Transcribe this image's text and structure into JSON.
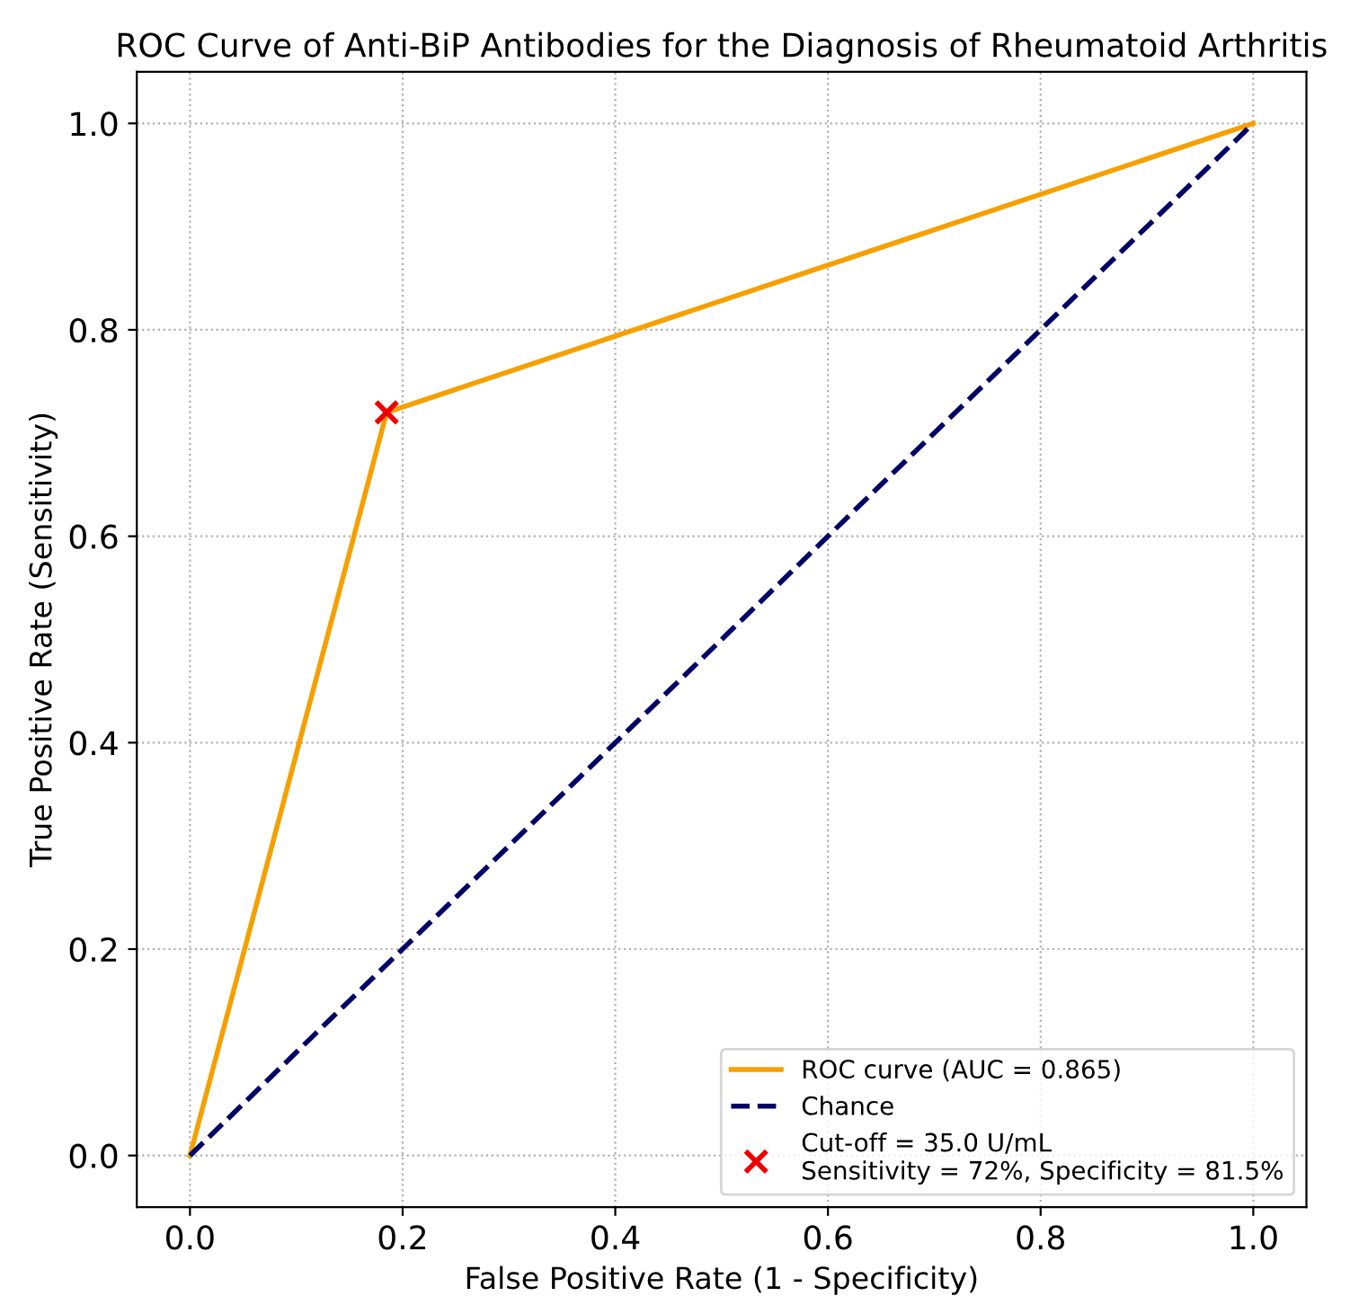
{
  "chart_data": {
    "type": "line",
    "title": "ROC Curve of Anti-BiP Antibodies for the Diagnosis of Rheumatoid Arthritis",
    "xlabel": "False Positive Rate (1 - Specificity)",
    "ylabel": "True Positive Rate (Sensitivity)",
    "series": [
      {
        "name": "ROC curve (AUC = 0.865)",
        "color": "#f5a000",
        "x": [
          0,
          0.185,
          1
        ],
        "values": [
          0,
          0.72,
          1
        ],
        "line_style": "solid",
        "marker": "none"
      },
      {
        "name": "Chance",
        "color": "#000066",
        "x": [
          0,
          1
        ],
        "values": [
          0,
          1
        ],
        "line_style": "dashed",
        "marker": "none"
      },
      {
        "name": "Cut-off = 35.0 U/mL\nSensitivity = 72%, Specificity = 81.5%",
        "type": "scatter",
        "color": "#ee0000",
        "x": [
          0.185
        ],
        "values": [
          0.72
        ],
        "marker": "cross"
      }
    ],
    "xlim": [
      -0.05,
      1.05
    ],
    "ylim": [
      -0.05,
      1.05
    ],
    "xticks": [
      {
        "value": 0,
        "label": "0.0"
      },
      0.2,
      0.4,
      0.6,
      0.8,
      {
        "value": 1,
        "label": "1.0"
      }
    ],
    "yticks": [
      {
        "value": 0,
        "label": "0.0"
      },
      0.2,
      0.4,
      0.6,
      0.8,
      {
        "value": 1,
        "label": "1.0"
      }
    ],
    "grid": true,
    "legend": "bottom right"
  }
}
